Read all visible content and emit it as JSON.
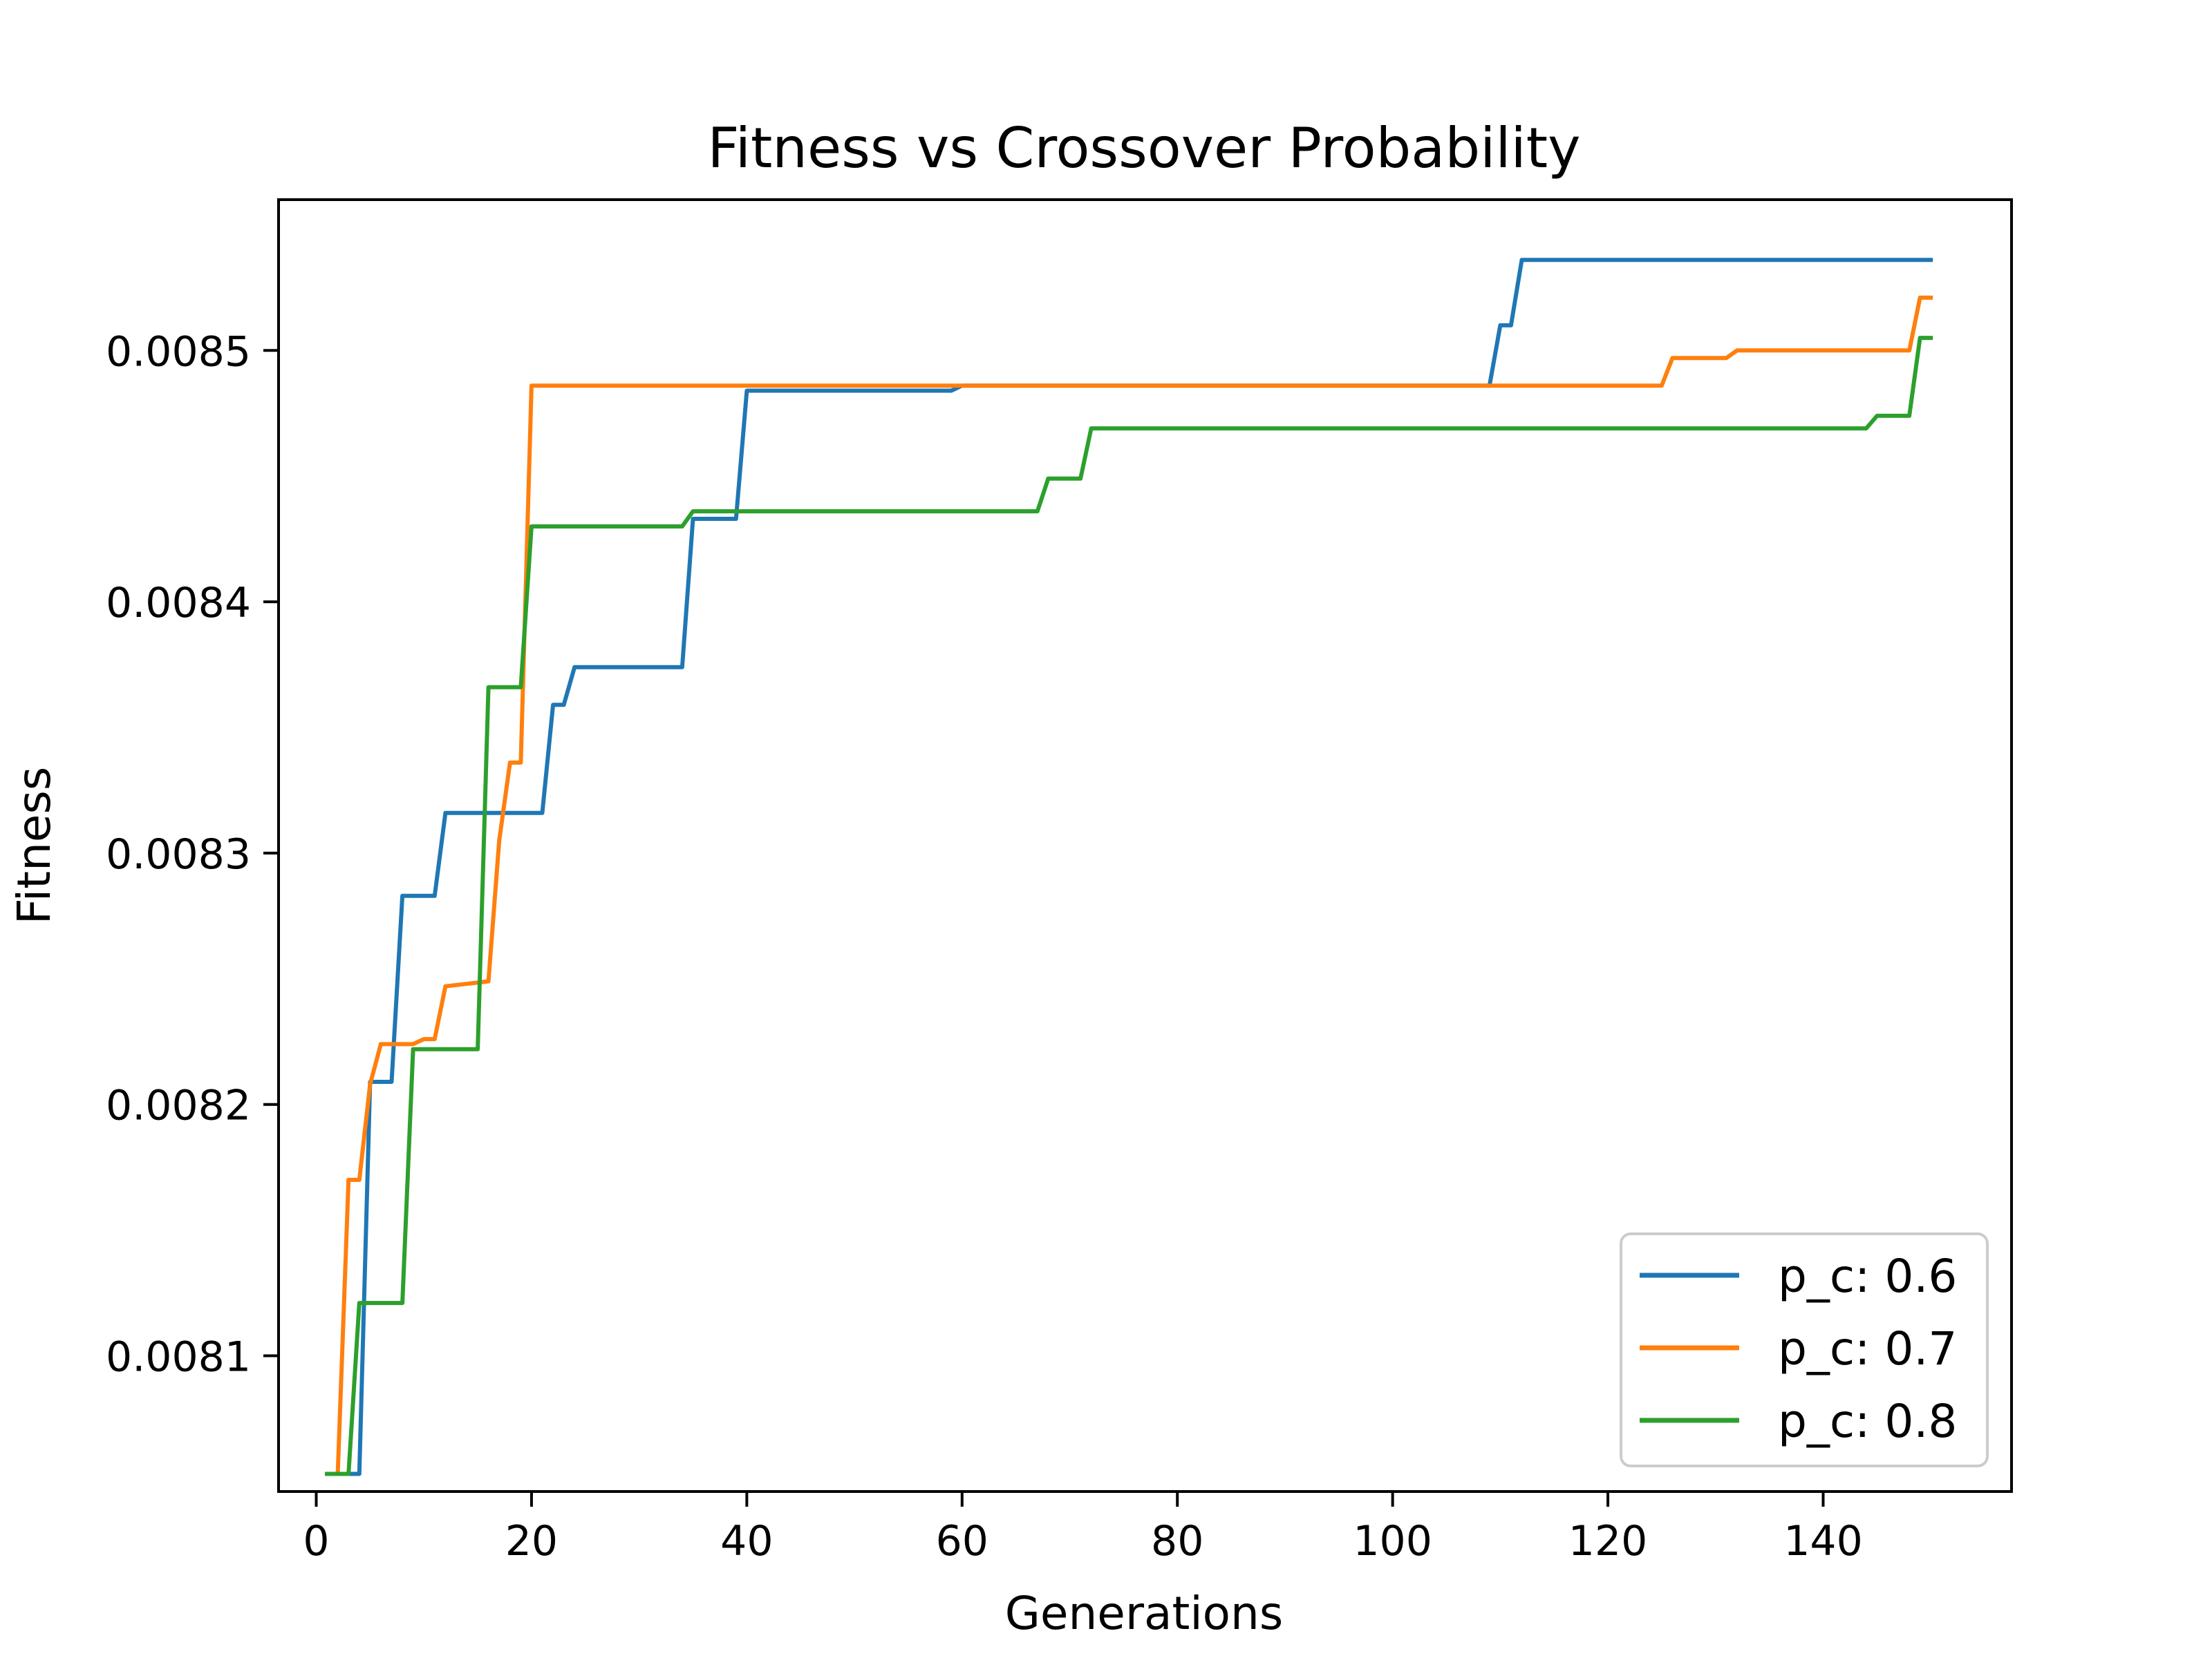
{
  "chart_data": {
    "type": "line",
    "title": "Fitness vs Crossover Probability",
    "xlabel": "Generations",
    "ylabel": "Fitness",
    "xlim": [
      -3.5,
      157.5
    ],
    "ylim": [
      0.008046,
      0.00856
    ],
    "xticks": [
      0,
      20,
      40,
      60,
      80,
      100,
      120,
      140
    ],
    "xtick_labels": [
      "0",
      "20",
      "40",
      "60",
      "80",
      "100",
      "120",
      "140"
    ],
    "yticks": [
      0.0081,
      0.0082,
      0.0083,
      0.0084,
      0.0085
    ],
    "ytick_labels": [
      "0.0081",
      "0.0082",
      "0.0083",
      "0.0084",
      "0.0085"
    ],
    "grid": false,
    "legend_position": "lower-right",
    "series": [
      {
        "name": "p_c: 0.6",
        "color": "#1f77b4",
        "points": [
          [
            1,
            0.008053
          ],
          [
            4,
            0.008053
          ],
          [
            5,
            0.008209
          ],
          [
            7,
            0.008209
          ],
          [
            8,
            0.008283
          ],
          [
            11,
            0.008283
          ],
          [
            12,
            0.008316
          ],
          [
            21,
            0.008316
          ],
          [
            22,
            0.008359
          ],
          [
            23,
            0.008359
          ],
          [
            24,
            0.008374
          ],
          [
            34,
            0.008374
          ],
          [
            35,
            0.008433
          ],
          [
            39,
            0.008433
          ],
          [
            40,
            0.008484
          ],
          [
            59,
            0.008484
          ],
          [
            60,
            0.008486
          ],
          [
            109,
            0.008486
          ],
          [
            110,
            0.00851
          ],
          [
            111,
            0.00851
          ],
          [
            112,
            0.008536
          ],
          [
            150,
            0.008536
          ]
        ]
      },
      {
        "name": "p_c: 0.7",
        "color": "#ff7f0e",
        "points": [
          [
            1,
            0.008053
          ],
          [
            2,
            0.008053
          ],
          [
            3,
            0.00817
          ],
          [
            4,
            0.00817
          ],
          [
            5,
            0.008208
          ],
          [
            6,
            0.008224
          ],
          [
            9,
            0.008224
          ],
          [
            10,
            0.008226
          ],
          [
            11,
            0.008226
          ],
          [
            12,
            0.008247
          ],
          [
            16,
            0.008249
          ],
          [
            17,
            0.008305
          ],
          [
            18,
            0.008336
          ],
          [
            19,
            0.008336
          ],
          [
            20,
            0.008486
          ],
          [
            125,
            0.008486
          ],
          [
            126,
            0.008497
          ],
          [
            131,
            0.008497
          ],
          [
            132,
            0.0085
          ],
          [
            148,
            0.0085
          ],
          [
            149,
            0.008521
          ],
          [
            150,
            0.008521
          ]
        ]
      },
      {
        "name": "p_c: 0.8",
        "color": "#2ca02c",
        "points": [
          [
            1,
            0.008053
          ],
          [
            3,
            0.008053
          ],
          [
            4,
            0.008121
          ],
          [
            8,
            0.008121
          ],
          [
            9,
            0.008222
          ],
          [
            15,
            0.008222
          ],
          [
            16,
            0.008366
          ],
          [
            19,
            0.008366
          ],
          [
            20,
            0.00843
          ],
          [
            34,
            0.00843
          ],
          [
            35,
            0.008436
          ],
          [
            67,
            0.008436
          ],
          [
            68,
            0.008449
          ],
          [
            71,
            0.008449
          ],
          [
            72,
            0.008469
          ],
          [
            144,
            0.008469
          ],
          [
            145,
            0.008474
          ],
          [
            148,
            0.008474
          ],
          [
            149,
            0.008505
          ],
          [
            150,
            0.008505
          ]
        ]
      }
    ]
  }
}
